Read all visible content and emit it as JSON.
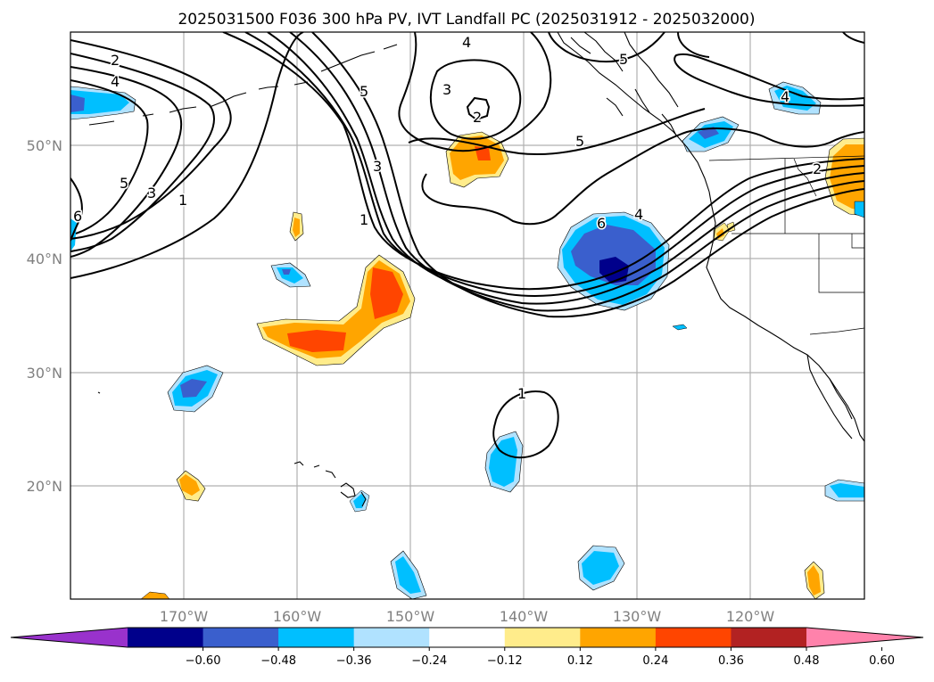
{
  "title": "2025031500 F036 300 hPa PV, IVT Landfall PC (2025031912 - 2025032000)",
  "map": {
    "lon_labels": [
      "170°W",
      "160°W",
      "150°W",
      "140°W",
      "130°W",
      "120°W"
    ],
    "lat_labels": [
      "50°N",
      "40°N",
      "30°N",
      "20°N"
    ],
    "contour_labels": {
      "c1": "2",
      "c2": "4",
      "c3": "5",
      "c4": "3",
      "c5": "1",
      "c6": "6",
      "c7": "4",
      "c8": "3",
      "c9": "2",
      "c10": "5",
      "c11": "5",
      "c12": "3",
      "c13": "1",
      "c14": "6",
      "c15": "4",
      "c16": "4",
      "c17": "2",
      "c18": "1",
      "c19": "5"
    }
  },
  "colorbar": {
    "ticks": [
      "−0.60",
      "−0.48",
      "−0.36",
      "−0.24",
      "−0.12",
      "0.12",
      "0.24",
      "0.36",
      "0.48",
      "0.60"
    ],
    "colors": [
      "#9932cc",
      "#00008b",
      "#3a5fcd",
      "#00bfff",
      "#b0e2ff",
      "#ffffff",
      "#ffec8b",
      "#ffa500",
      "#ff4500",
      "#b22222",
      "#ff82ab"
    ]
  }
}
